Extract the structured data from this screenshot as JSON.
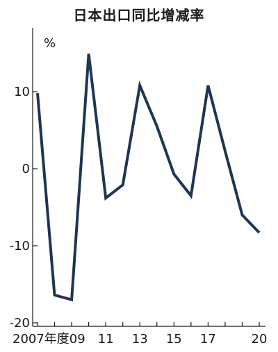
{
  "chart_data": {
    "type": "line",
    "title": "日本出口同比增减率",
    "ylabel": "%",
    "xlabel": "",
    "ylim": [
      -20,
      17
    ],
    "xlim": [
      2007,
      2020
    ],
    "yticks": [
      {
        "value": 10,
        "label": "10"
      },
      {
        "value": 0,
        "label": "0"
      },
      {
        "value": -10,
        "label": "-10"
      },
      {
        "value": -20,
        "label": "-20"
      }
    ],
    "xticks": [
      {
        "value": 2007,
        "label": "2007年度09"
      },
      {
        "value": 2011,
        "label": "11"
      },
      {
        "value": 2013,
        "label": "13"
      },
      {
        "value": 2015,
        "label": "15"
      },
      {
        "value": 2017,
        "label": "17"
      },
      {
        "value": 2020,
        "label": "20"
      }
    ],
    "grid": false,
    "series": [
      {
        "x": [
          2007,
          2008,
          2009,
          2010,
          2011,
          2012,
          2013,
          2014,
          2015,
          2016,
          2017,
          2018,
          2019,
          2020
        ],
        "values": [
          9.8,
          -16.4,
          -17.0,
          14.9,
          -3.8,
          -2.1,
          10.8,
          5.5,
          -0.7,
          -3.5,
          10.8,
          2.3,
          -6.0,
          -8.3
        ],
        "color": "#1d3557"
      }
    ]
  }
}
